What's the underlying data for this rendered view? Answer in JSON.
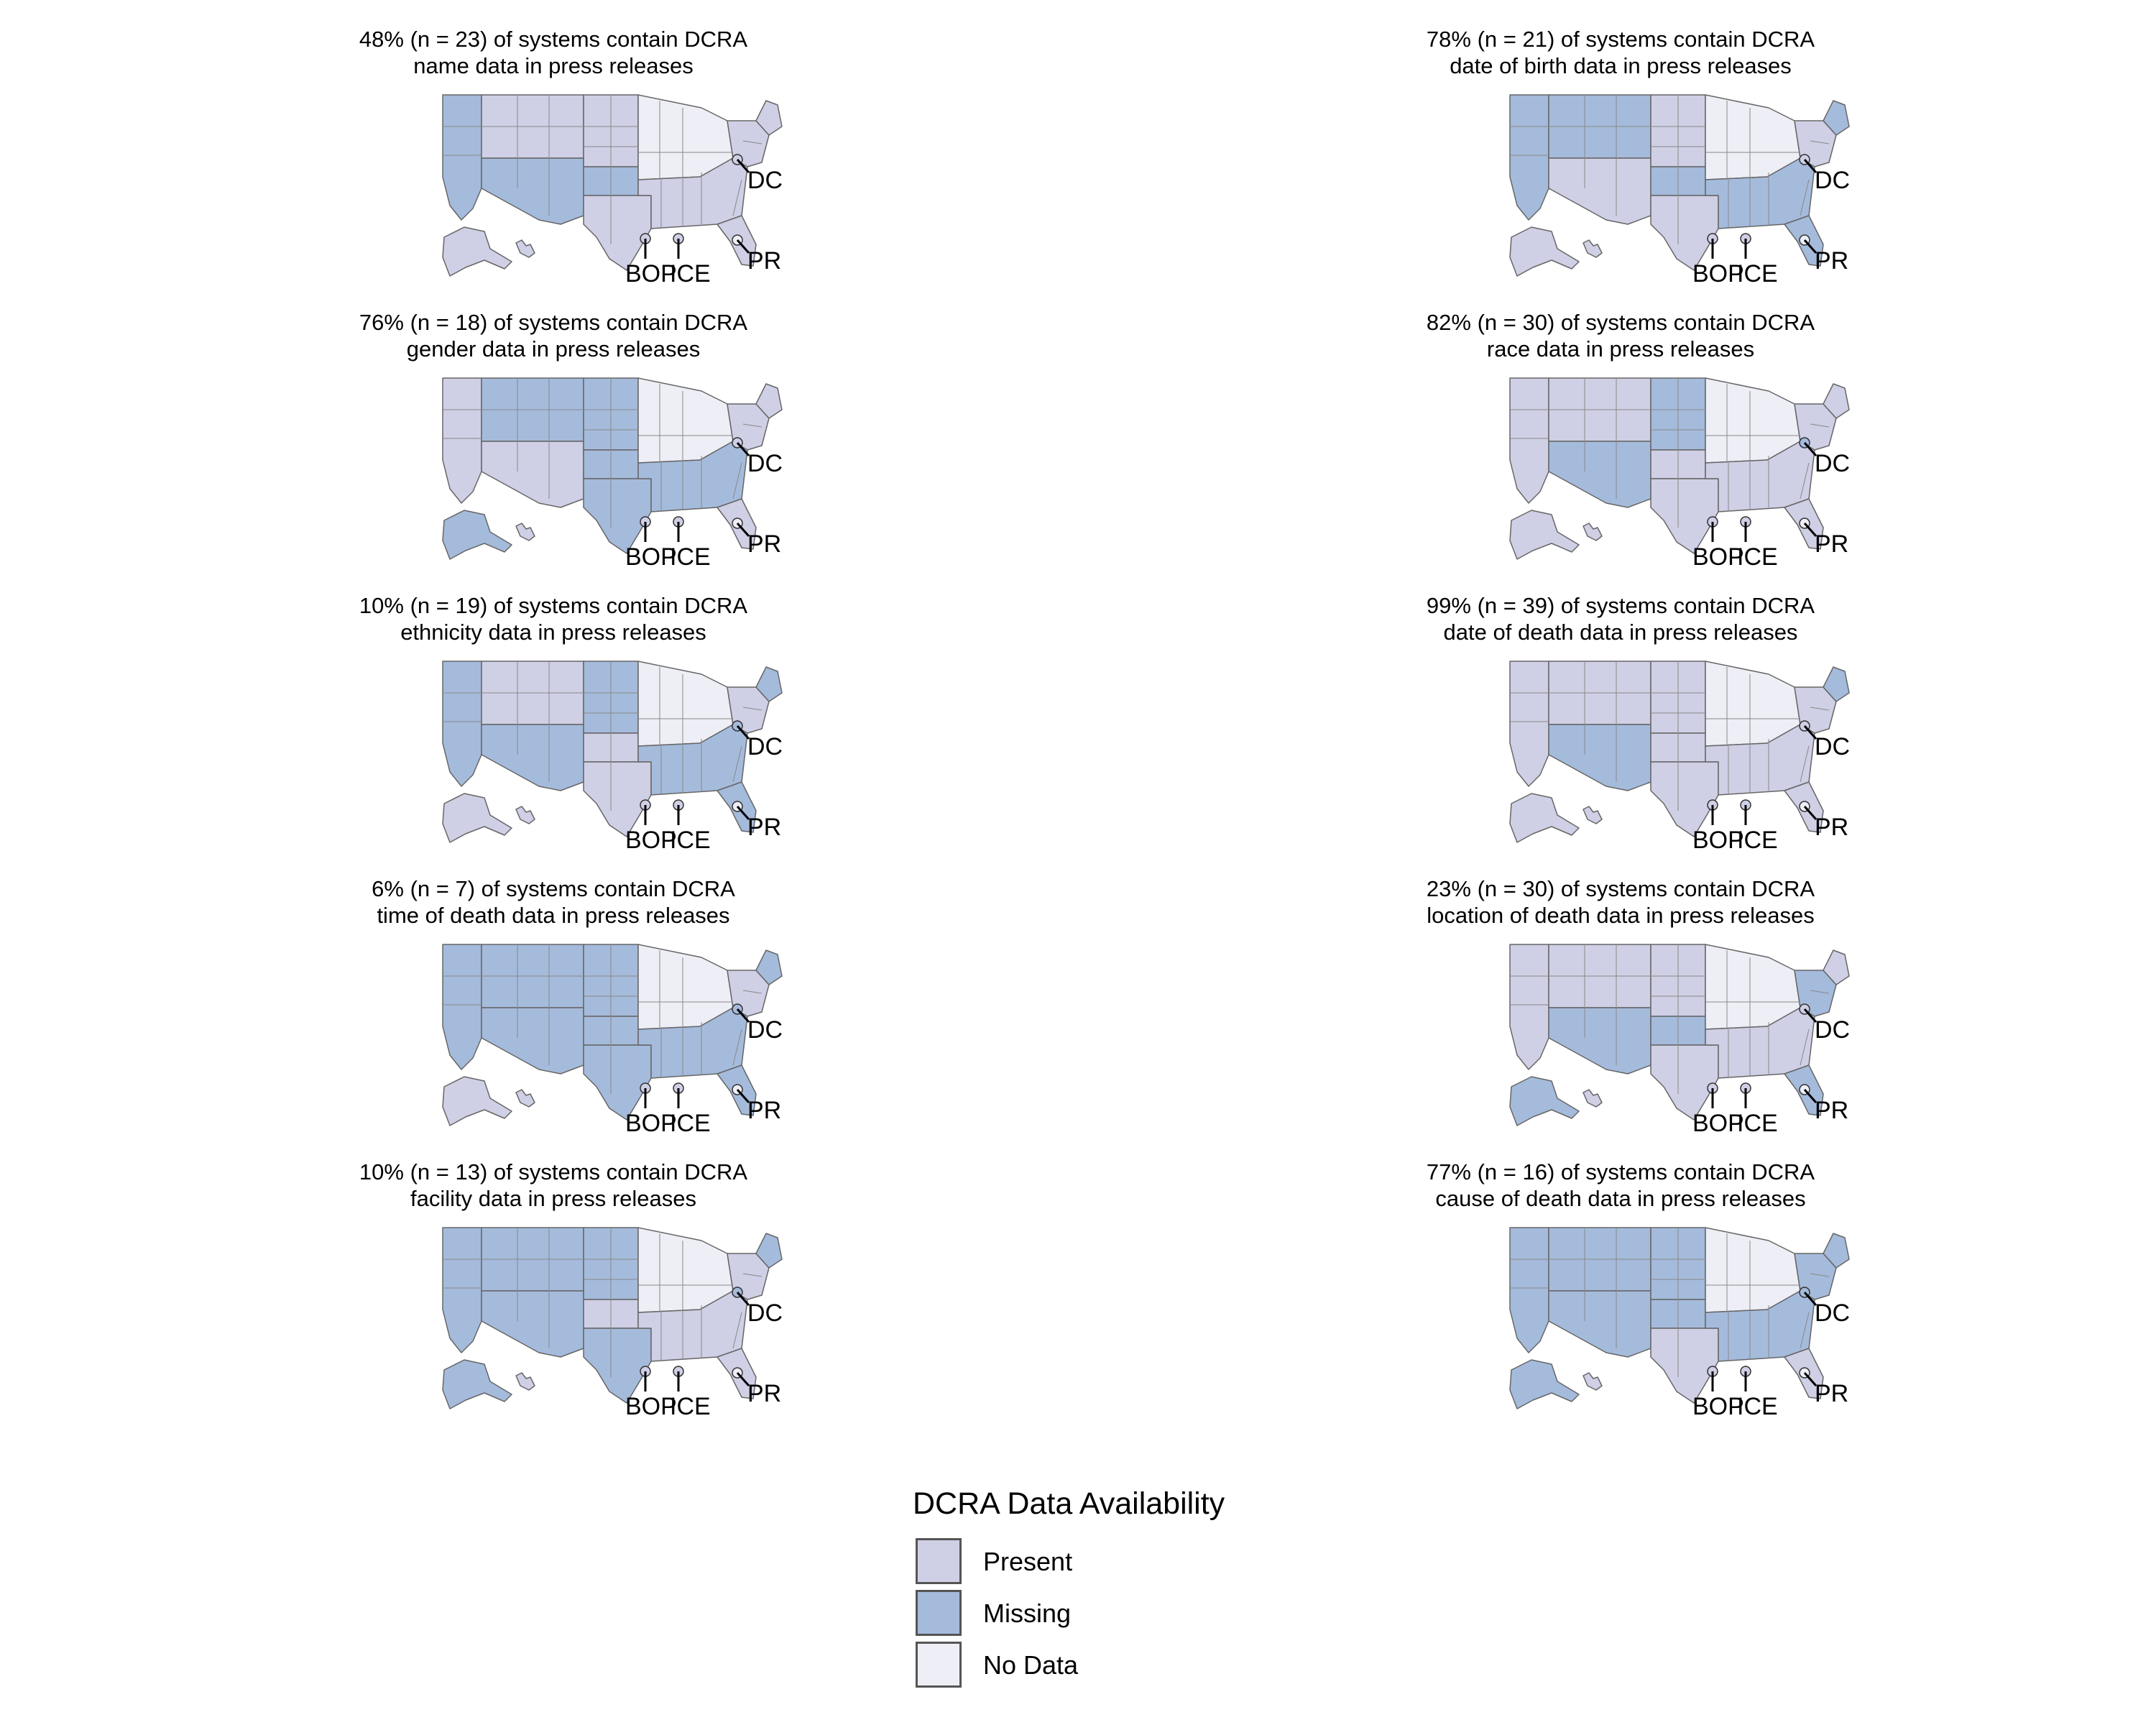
{
  "colors": {
    "Present": "#cfcfe6",
    "Missing": "#a5bbdc",
    "No Data": "#eeeef6"
  },
  "legend": {
    "title": "DCRA Data Availability",
    "items": [
      {
        "label": "Present",
        "color": "#cfcfe6"
      },
      {
        "label": "Missing",
        "color": "#a5bbdc"
      },
      {
        "label": "No Data",
        "color": "#eeeef6"
      }
    ]
  },
  "map_labels": {
    "dc": "DC",
    "pr": "PR",
    "bop": "BOP",
    "ice": "ICE"
  },
  "panels": [
    {
      "title_line1": "48% (n = 23) of systems contain DCRA",
      "title_line2": "name data in press releases",
      "regions": {
        "pacific": "Missing",
        "mountain_n": "Present",
        "mountain_s": "Missing",
        "plains_n": "Present",
        "plains_s": "Missing",
        "south_c": "Present",
        "midwest": "No Data",
        "southeast": "Present",
        "northeast": "Present",
        "new_england": "Present",
        "florida": "Present",
        "alaska": "Present",
        "hawaii": "Present",
        "dc": "Present",
        "pr": "No Data",
        "bop": "Present",
        "ice": "Present"
      }
    },
    {
      "title_line1": "78% (n = 21) of systems contain DCRA",
      "title_line2": "date of birth data in press releases",
      "regions": {
        "pacific": "Missing",
        "mountain_n": "Missing",
        "mountain_s": "Present",
        "plains_n": "Present",
        "plains_s": "Missing",
        "south_c": "Present",
        "midwest": "No Data",
        "southeast": "Missing",
        "northeast": "Present",
        "new_england": "Missing",
        "florida": "Missing",
        "alaska": "Present",
        "hawaii": "Present",
        "dc": "Present",
        "pr": "No Data",
        "bop": "Present",
        "ice": "Present"
      }
    },
    {
      "title_line1": "76% (n = 18) of systems contain DCRA",
      "title_line2": "gender data in press releases",
      "regions": {
        "pacific": "Present",
        "mountain_n": "Missing",
        "mountain_s": "Present",
        "plains_n": "Missing",
        "plains_s": "Missing",
        "south_c": "Missing",
        "midwest": "No Data",
        "southeast": "Missing",
        "northeast": "Present",
        "new_england": "Present",
        "florida": "Present",
        "alaska": "Missing",
        "hawaii": "Present",
        "dc": "Present",
        "pr": "No Data",
        "bop": "Present",
        "ice": "Present"
      }
    },
    {
      "title_line1": "82% (n = 30) of systems contain DCRA",
      "title_line2": "race data in press releases",
      "regions": {
        "pacific": "Present",
        "mountain_n": "Present",
        "mountain_s": "Missing",
        "plains_n": "Missing",
        "plains_s": "Present",
        "south_c": "Present",
        "midwest": "No Data",
        "southeast": "Present",
        "northeast": "Present",
        "new_england": "Present",
        "florida": "Present",
        "alaska": "Present",
        "hawaii": "Present",
        "dc": "Missing",
        "pr": "No Data",
        "bop": "Present",
        "ice": "Present"
      }
    },
    {
      "title_line1": "10% (n = 19) of systems contain DCRA",
      "title_line2": "ethnicity data in press releases",
      "regions": {
        "pacific": "Missing",
        "mountain_n": "Present",
        "mountain_s": "Missing",
        "plains_n": "Missing",
        "plains_s": "Present",
        "south_c": "Present",
        "midwest": "No Data",
        "southeast": "Missing",
        "northeast": "Present",
        "new_england": "Missing",
        "florida": "Missing",
        "alaska": "Present",
        "hawaii": "Present",
        "dc": "Missing",
        "pr": "No Data",
        "bop": "Present",
        "ice": "Present"
      }
    },
    {
      "title_line1": "99% (n = 39) of systems contain DCRA",
      "title_line2": "date of death data in press releases",
      "regions": {
        "pacific": "Present",
        "mountain_n": "Present",
        "mountain_s": "Missing",
        "plains_n": "Present",
        "plains_s": "Present",
        "south_c": "Present",
        "midwest": "No Data",
        "southeast": "Present",
        "northeast": "Present",
        "new_england": "Missing",
        "florida": "Present",
        "alaska": "Present",
        "hawaii": "Present",
        "dc": "Present",
        "pr": "No Data",
        "bop": "Present",
        "ice": "Present"
      }
    },
    {
      "title_line1": "6% (n = 7) of systems contain DCRA",
      "title_line2": "time of death data in press releases",
      "regions": {
        "pacific": "Missing",
        "mountain_n": "Missing",
        "mountain_s": "Missing",
        "plains_n": "Missing",
        "plains_s": "Missing",
        "south_c": "Missing",
        "midwest": "No Data",
        "southeast": "Missing",
        "northeast": "Present",
        "new_england": "Missing",
        "florida": "Missing",
        "alaska": "Present",
        "hawaii": "Present",
        "dc": "Missing",
        "pr": "No Data",
        "bop": "Present",
        "ice": "Present"
      }
    },
    {
      "title_line1": "23% (n = 30) of systems contain DCRA",
      "title_line2": "location of death data in press releases",
      "regions": {
        "pacific": "Present",
        "mountain_n": "Present",
        "mountain_s": "Missing",
        "plains_n": "Present",
        "plains_s": "Missing",
        "south_c": "Present",
        "midwest": "No Data",
        "southeast": "Present",
        "northeast": "Missing",
        "new_england": "Present",
        "florida": "Missing",
        "alaska": "Missing",
        "hawaii": "Present",
        "dc": "Present",
        "pr": "No Data",
        "bop": "Present",
        "ice": "Present"
      }
    },
    {
      "title_line1": "10% (n = 13) of systems contain DCRA",
      "title_line2": "facility data in press releases",
      "regions": {
        "pacific": "Missing",
        "mountain_n": "Missing",
        "mountain_s": "Missing",
        "plains_n": "Missing",
        "plains_s": "Present",
        "south_c": "Missing",
        "midwest": "No Data",
        "southeast": "Present",
        "northeast": "Present",
        "new_england": "Missing",
        "florida": "Present",
        "alaska": "Missing",
        "hawaii": "Present",
        "dc": "Missing",
        "pr": "No Data",
        "bop": "Present",
        "ice": "Present"
      }
    },
    {
      "title_line1": "77% (n = 16) of systems contain DCRA",
      "title_line2": "cause of death data in press releases",
      "regions": {
        "pacific": "Missing",
        "mountain_n": "Missing",
        "mountain_s": "Missing",
        "plains_n": "Missing",
        "plains_s": "Missing",
        "south_c": "Present",
        "midwest": "No Data",
        "southeast": "Missing",
        "northeast": "Missing",
        "new_england": "Missing",
        "florida": "Present",
        "alaska": "Missing",
        "hawaii": "Present",
        "dc": "Missing",
        "pr": "No Data",
        "bop": "Present",
        "ice": "Present"
      }
    }
  ]
}
